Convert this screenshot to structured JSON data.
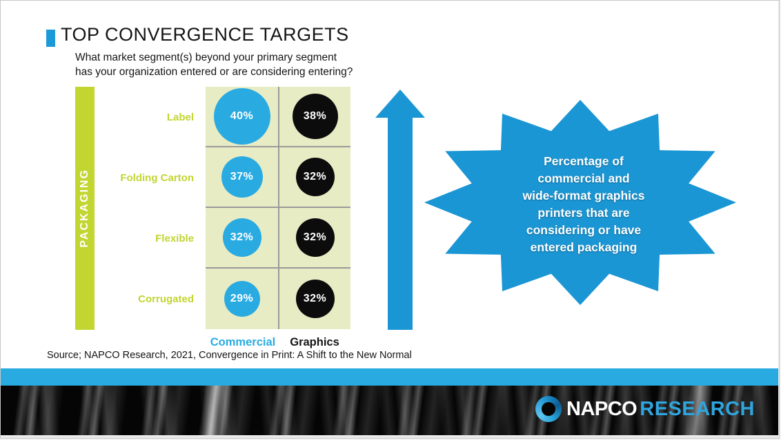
{
  "slide": {
    "title": "TOP CONVERGENCE TARGETS",
    "question_line1": "What market segment(s) beyond your primary segment",
    "question_line2": "has your organization entered or are considering entering?",
    "source": "Source; NAPCO Research, 2021, Convergence in Print: A Shift to the New Normal"
  },
  "chart_data": {
    "type": "bubble-matrix",
    "title": "TOP CONVERGENCE TARGETS",
    "group_label": "PACKAGING",
    "categories": [
      "Label",
      "Folding Carton",
      "Flexible",
      "Corrugated"
    ],
    "series": [
      {
        "name": "Commercial",
        "color": "#29abe2",
        "values": [
          40,
          37,
          32,
          29
        ]
      },
      {
        "name": "Graphics",
        "color": "#0c0c0c",
        "values": [
          38,
          32,
          32,
          32
        ]
      }
    ],
    "value_suffix": "%",
    "legend_position": "bottom"
  },
  "callout": {
    "lines": [
      "Percentage of",
      "commercial and",
      "wide-format graphics",
      "printers that are",
      "considering or have",
      "entered packaging"
    ]
  },
  "footer": {
    "brand_primary": "NAPCO",
    "brand_secondary": "RESEARCH"
  },
  "colors": {
    "brand_blue": "#29abe2",
    "shape_blue": "#1b96d4",
    "lime": "#c2d531",
    "cell_bg": "#e8ecc4",
    "grid_line": "#999999",
    "ink": "#141414"
  }
}
